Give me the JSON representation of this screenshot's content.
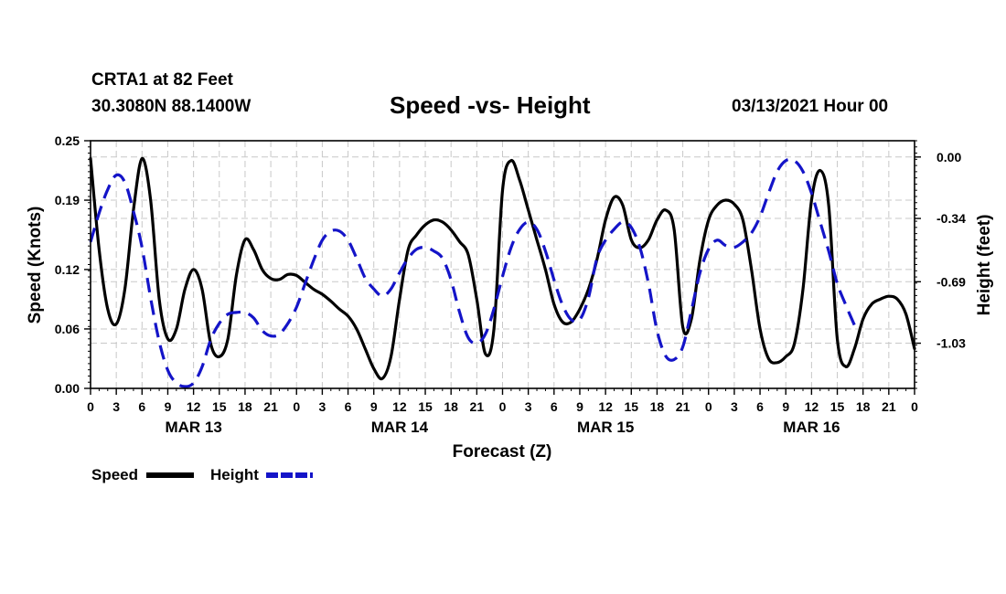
{
  "header": {
    "station": "CRTA1 at 82 Feet",
    "coords": "30.3080N 88.1400W",
    "title": "Speed -vs- Height",
    "datetime": "03/13/2021 Hour 00"
  },
  "chart_data": {
    "type": "line",
    "title": "Speed -vs- Height",
    "xlabel": "Forecast (Z)",
    "ylabel_left": "Speed (Knots)",
    "ylabel_right": "Height (feet)",
    "x_range": [
      0,
      96
    ],
    "x_unit": "hours from 03/13/2021 00Z",
    "x_tick_labels": [
      "0",
      "3",
      "6",
      "9",
      "12",
      "15",
      "18",
      "21",
      "0",
      "3",
      "6",
      "9",
      "12",
      "15",
      "18",
      "21",
      "0",
      "3",
      "6",
      "9",
      "12",
      "15",
      "18",
      "21",
      "0",
      "3",
      "6",
      "9",
      "12",
      "15",
      "18",
      "21",
      "0"
    ],
    "day_labels": [
      {
        "label": "MAR 13",
        "hour": 12
      },
      {
        "label": "MAR 14",
        "hour": 36
      },
      {
        "label": "MAR 15",
        "hour": 60
      },
      {
        "label": "MAR 16",
        "hour": 84
      }
    ],
    "y_left": {
      "range": [
        0,
        0.25
      ],
      "ticks": [
        0.0,
        0.06,
        0.12,
        0.19,
        0.25
      ],
      "tick_labels": [
        "0.00",
        "0.06",
        "0.12",
        "0.19",
        "0.25"
      ]
    },
    "y_right": {
      "range": [
        -1.28,
        0.09
      ],
      "ticks": [
        0.0,
        -0.34,
        -0.69,
        -1.03
      ],
      "tick_labels": [
        "0.00",
        "-0.34",
        "-0.69",
        "-1.03"
      ]
    },
    "grid": true,
    "series": [
      {
        "name": "Speed",
        "axis": "left",
        "color": "#000000",
        "style": "solid",
        "points": [
          [
            0,
            0.232
          ],
          [
            1,
            0.14
          ],
          [
            2,
            0.08
          ],
          [
            3,
            0.065
          ],
          [
            4,
            0.1
          ],
          [
            5,
            0.18
          ],
          [
            6,
            0.232
          ],
          [
            7,
            0.19
          ],
          [
            8,
            0.09
          ],
          [
            9,
            0.05
          ],
          [
            10,
            0.06
          ],
          [
            11,
            0.1
          ],
          [
            12,
            0.12
          ],
          [
            13,
            0.1
          ],
          [
            14,
            0.045
          ],
          [
            15,
            0.032
          ],
          [
            16,
            0.05
          ],
          [
            17,
            0.115
          ],
          [
            18,
            0.15
          ],
          [
            19,
            0.14
          ],
          [
            20,
            0.12
          ],
          [
            21,
            0.111
          ],
          [
            22,
            0.11
          ],
          [
            23,
            0.115
          ],
          [
            24,
            0.114
          ],
          [
            25,
            0.107
          ],
          [
            26,
            0.1
          ],
          [
            27,
            0.095
          ],
          [
            28,
            0.088
          ],
          [
            29,
            0.08
          ],
          [
            30,
            0.073
          ],
          [
            31,
            0.06
          ],
          [
            32,
            0.04
          ],
          [
            33,
            0.02
          ],
          [
            34,
            0.01
          ],
          [
            35,
            0.032
          ],
          [
            36,
            0.09
          ],
          [
            37,
            0.14
          ],
          [
            38,
            0.155
          ],
          [
            39,
            0.165
          ],
          [
            40,
            0.17
          ],
          [
            41,
            0.168
          ],
          [
            42,
            0.16
          ],
          [
            43,
            0.148
          ],
          [
            44,
            0.135
          ],
          [
            45,
            0.09
          ],
          [
            46,
            0.035
          ],
          [
            47,
            0.06
          ],
          [
            48,
            0.2
          ],
          [
            49,
            0.23
          ],
          [
            50,
            0.21
          ],
          [
            51,
            0.18
          ],
          [
            52,
            0.15
          ],
          [
            53,
            0.12
          ],
          [
            54,
            0.085
          ],
          [
            55,
            0.067
          ],
          [
            56,
            0.067
          ],
          [
            57,
            0.08
          ],
          [
            58,
            0.1
          ],
          [
            59,
            0.13
          ],
          [
            60,
            0.17
          ],
          [
            61,
            0.193
          ],
          [
            62,
            0.185
          ],
          [
            63,
            0.15
          ],
          [
            64,
            0.142
          ],
          [
            65,
            0.15
          ],
          [
            66,
            0.17
          ],
          [
            67,
            0.18
          ],
          [
            68,
            0.16
          ],
          [
            69,
            0.062
          ],
          [
            70,
            0.07
          ],
          [
            71,
            0.13
          ],
          [
            72,
            0.17
          ],
          [
            73,
            0.185
          ],
          [
            74,
            0.19
          ],
          [
            75,
            0.186
          ],
          [
            76,
            0.17
          ],
          [
            77,
            0.12
          ],
          [
            78,
            0.06
          ],
          [
            79,
            0.03
          ],
          [
            80,
            0.026
          ],
          [
            81,
            0.032
          ],
          [
            82,
            0.045
          ],
          [
            83,
            0.1
          ],
          [
            84,
            0.19
          ],
          [
            85,
            0.22
          ],
          [
            86,
            0.185
          ],
          [
            87,
            0.05
          ],
          [
            88,
            0.022
          ],
          [
            89,
            0.04
          ],
          [
            90,
            0.07
          ],
          [
            91,
            0.085
          ],
          [
            92,
            0.09
          ],
          [
            93,
            0.093
          ],
          [
            94,
            0.09
          ],
          [
            95,
            0.075
          ],
          [
            96,
            0.04
          ]
        ]
      },
      {
        "name": "Height",
        "axis": "right",
        "color": "#1414c8",
        "style": "dashed",
        "points": [
          [
            0,
            -0.47
          ],
          [
            1,
            -0.31
          ],
          [
            2,
            -0.18
          ],
          [
            3,
            -0.1
          ],
          [
            4,
            -0.14
          ],
          [
            5,
            -0.3
          ],
          [
            6,
            -0.5
          ],
          [
            7,
            -0.78
          ],
          [
            8,
            -1.02
          ],
          [
            9,
            -1.18
          ],
          [
            10,
            -1.25
          ],
          [
            11,
            -1.27
          ],
          [
            12,
            -1.25
          ],
          [
            13,
            -1.16
          ],
          [
            14,
            -1.01
          ],
          [
            15,
            -0.92
          ],
          [
            16,
            -0.87
          ],
          [
            17,
            -0.86
          ],
          [
            18,
            -0.86
          ],
          [
            19,
            -0.89
          ],
          [
            20,
            -0.96
          ],
          [
            21,
            -0.99
          ],
          [
            22,
            -0.98
          ],
          [
            23,
            -0.92
          ],
          [
            24,
            -0.83
          ],
          [
            25,
            -0.7
          ],
          [
            26,
            -0.57
          ],
          [
            27,
            -0.46
          ],
          [
            28,
            -0.41
          ],
          [
            29,
            -0.41
          ],
          [
            30,
            -0.46
          ],
          [
            31,
            -0.56
          ],
          [
            32,
            -0.67
          ],
          [
            33,
            -0.73
          ],
          [
            34,
            -0.77
          ],
          [
            35,
            -0.73
          ],
          [
            36,
            -0.64
          ],
          [
            37,
            -0.56
          ],
          [
            38,
            -0.51
          ],
          [
            39,
            -0.5
          ],
          [
            40,
            -0.52
          ],
          [
            41,
            -0.56
          ],
          [
            42,
            -0.68
          ],
          [
            43,
            -0.86
          ],
          [
            44,
            -1.0
          ],
          [
            45,
            -1.03
          ],
          [
            46,
            -0.98
          ],
          [
            47,
            -0.84
          ],
          [
            48,
            -0.66
          ],
          [
            49,
            -0.5
          ],
          [
            50,
            -0.4
          ],
          [
            51,
            -0.36
          ],
          [
            52,
            -0.4
          ],
          [
            53,
            -0.52
          ],
          [
            54,
            -0.68
          ],
          [
            55,
            -0.82
          ],
          [
            56,
            -0.9
          ],
          [
            57,
            -0.9
          ],
          [
            58,
            -0.78
          ],
          [
            59,
            -0.56
          ],
          [
            60,
            -0.46
          ],
          [
            61,
            -0.4
          ],
          [
            62,
            -0.36
          ],
          [
            63,
            -0.39
          ],
          [
            64,
            -0.5
          ],
          [
            65,
            -0.7
          ],
          [
            66,
            -0.96
          ],
          [
            67,
            -1.1
          ],
          [
            68,
            -1.12
          ],
          [
            69,
            -1.05
          ],
          [
            70,
            -0.85
          ],
          [
            71,
            -0.64
          ],
          [
            72,
            -0.51
          ],
          [
            73,
            -0.46
          ],
          [
            74,
            -0.49
          ],
          [
            75,
            -0.5
          ],
          [
            76,
            -0.47
          ],
          [
            77,
            -0.42
          ],
          [
            78,
            -0.33
          ],
          [
            79,
            -0.2
          ],
          [
            80,
            -0.08
          ],
          [
            81,
            -0.02
          ],
          [
            82,
            -0.02
          ],
          [
            83,
            -0.08
          ],
          [
            84,
            -0.2
          ],
          [
            85,
            -0.36
          ],
          [
            86,
            -0.52
          ],
          [
            87,
            -0.7
          ],
          [
            88,
            -0.82
          ],
          [
            89,
            -0.93
          ]
        ]
      }
    ],
    "legend": {
      "placement": "bottom-left",
      "entries": [
        {
          "label": "Speed"
        },
        {
          "label": "Height"
        }
      ]
    }
  }
}
